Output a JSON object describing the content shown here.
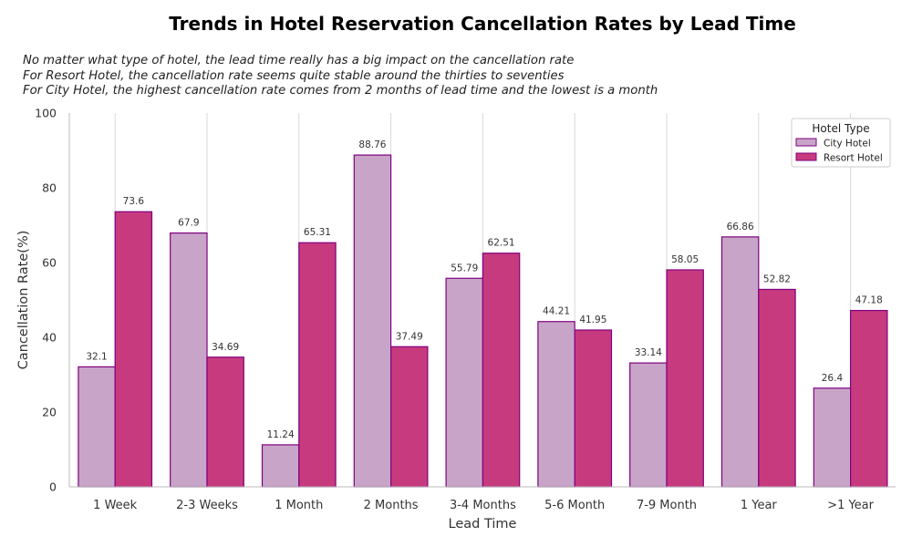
{
  "annotations": [
    "No matter what type of hotel, the lead time really has a big impact on the cancellation rate",
    "For Resort Hotel, the cancellation rate seems quite stable around the thirties to seventies",
    "For City Hotel, the highest cancellation rate comes from 2 months of lead time and the lowest is a month"
  ],
  "chart_data": {
    "type": "bar",
    "title": "Trends in Hotel Reservation Cancellation Rates by Lead Time",
    "xlabel": "Lead Time",
    "ylabel": "Cancellation Rate(%)",
    "ylim": [
      0,
      100
    ],
    "yticks": [
      0,
      20,
      40,
      60,
      80,
      100
    ],
    "grid": "vertical",
    "legend_title": "Hotel Type",
    "legend_position": "top-right",
    "categories": [
      "1 Week",
      "2-3 Weeks",
      "1 Month",
      "2 Months",
      "3-4 Months",
      "5-6 Month",
      "7-9 Month",
      "1 Year",
      ">1 Year"
    ],
    "series": [
      {
        "name": "City Hotel",
        "color": "#c8a5c8",
        "edge": "#800080",
        "values": [
          32.1,
          67.9,
          11.24,
          88.76,
          55.79,
          44.21,
          33.14,
          66.86,
          26.4
        ]
      },
      {
        "name": "Resort Hotel",
        "color": "#c73a7e",
        "edge": "#800080",
        "values": [
          73.6,
          34.69,
          65.31,
          37.49,
          62.51,
          41.95,
          58.05,
          52.82,
          47.18
        ]
      }
    ]
  }
}
